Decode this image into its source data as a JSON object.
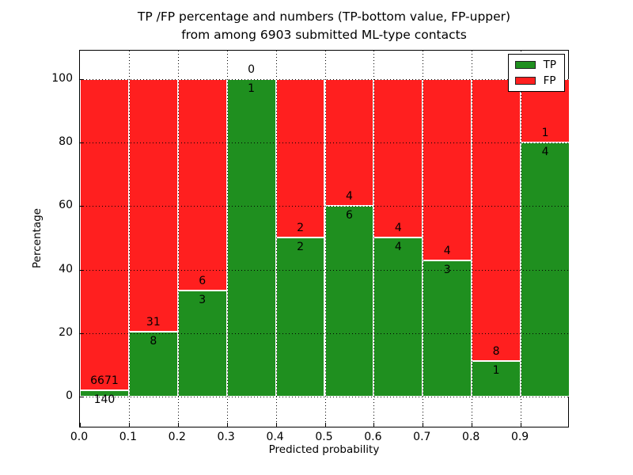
{
  "figure": {
    "title_line1": "TP /FP percentage and numbers (TP-bottom value, FP-upper)",
    "title_line2": "from among 6903 submitted ML-type contacts"
  },
  "chart_data": {
    "type": "bar",
    "stacked": true,
    "normalized": "each bar scaled to 100%, bar height = count percentage",
    "title": "TP /FP percentage and numbers (TP-bottom value, FP-upper)\nfrom among 6903 submitted ML-type contacts",
    "xlabel": "Predicted probability",
    "ylabel": "Percentage",
    "total_contacts": 6903,
    "bin_edges": [
      0.0,
      0.1,
      0.2,
      0.3,
      0.4,
      0.5,
      0.6,
      0.7,
      0.8,
      0.9,
      1.0
    ],
    "categories": [
      "0.0-0.1",
      "0.1-0.2",
      "0.2-0.3",
      "0.3-0.4",
      "0.4-0.5",
      "0.5-0.6",
      "0.6-0.7",
      "0.7-0.8",
      "0.8-0.9",
      "0.9-1.0"
    ],
    "series": [
      {
        "name": "TP",
        "color": "#1f8f1f",
        "values": [
          140,
          8,
          3,
          1,
          2,
          6,
          4,
          3,
          1,
          4
        ]
      },
      {
        "name": "FP",
        "color": "#ff1f1f",
        "values": [
          6671,
          31,
          6,
          0,
          2,
          4,
          4,
          4,
          8,
          1
        ]
      }
    ],
    "tp_percent": [
      2.06,
      20.51,
      33.33,
      100.0,
      50.0,
      60.0,
      50.0,
      42.86,
      11.11,
      80.0
    ],
    "xtick_labels": [
      "0.0",
      "0.1",
      "0.2",
      "0.3",
      "0.4",
      "0.5",
      "0.6",
      "0.7",
      "0.8",
      "0.9"
    ],
    "ytick_values": [
      0,
      20,
      40,
      60,
      80,
      100
    ],
    "ylim": [
      -10,
      109
    ],
    "xlim": [
      0.0,
      1.0
    ],
    "grid": "dotted black, horizontal at yticks and vertical at bin edges, drawn above bars",
    "bar_edge_color": "#ffffff",
    "legend": {
      "position": "upper right",
      "entries": [
        "TP",
        "FP"
      ]
    }
  }
}
